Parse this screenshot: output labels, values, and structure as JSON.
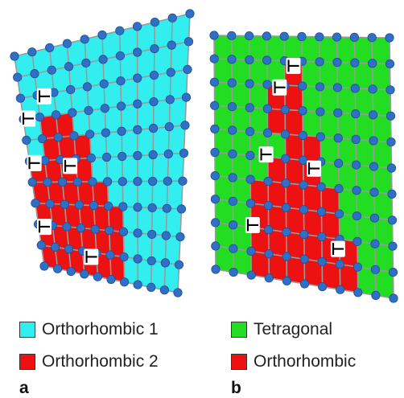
{
  "panels": [
    {
      "letter": "a",
      "phases": [
        {
          "name": "Orthorhombic 1",
          "color": "#33eeee"
        },
        {
          "name": "Orthorhombic 2",
          "color": "#ee1111"
        }
      ]
    },
    {
      "letter": "b",
      "phases": [
        {
          "name": "Tetragonal",
          "color": "#22dd22"
        },
        {
          "name": "Orthorhombic",
          "color": "#ee1111"
        }
      ]
    }
  ],
  "atom_color": "#2f6fc4",
  "bond_color": "#9a9a9a",
  "dislocation_symbol": "⊥"
}
